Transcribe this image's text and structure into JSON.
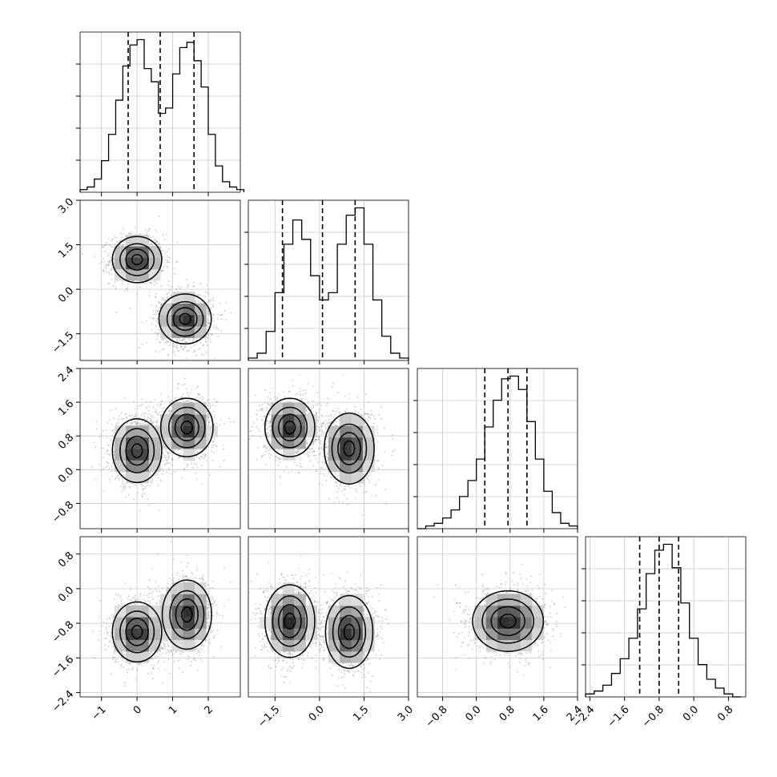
{
  "chart_data": {
    "type": "corner",
    "n_params": 4,
    "grid": true,
    "quantile_line_style": "dashed",
    "axes": [
      {
        "range": [
          -1.6,
          2.9
        ],
        "tick_values": [
          -1,
          0,
          1,
          2
        ],
        "tick_labels": [
          "−1",
          "0",
          "1",
          "2"
        ]
      },
      {
        "range": [
          -2.4,
          3.0
        ],
        "tick_values": [
          -1.5,
          0.0,
          1.5,
          3.0
        ],
        "tick_labels": [
          "−1.5",
          "0.0",
          "1.5",
          "3.0"
        ]
      },
      {
        "range": [
          -1.4,
          2.4
        ],
        "tick_values": [
          -0.8,
          0.0,
          0.8,
          1.6,
          2.4
        ],
        "tick_labels": [
          "−0.8",
          "0.0",
          "0.8",
          "1.6",
          "2.4"
        ]
      },
      {
        "range": [
          -2.5,
          1.2
        ],
        "tick_values": [
          -2.4,
          -1.6,
          -0.8,
          0.0,
          0.8
        ],
        "tick_labels": [
          "−2.4",
          "−1.6",
          "−0.8",
          "0.0",
          "0.8"
        ]
      }
    ],
    "diagonal_histograms": [
      {
        "param": 0,
        "quantiles": [
          -0.25,
          0.65,
          1.6
        ],
        "bin_edges": [
          -1.6,
          -1.4,
          -1.2,
          -1.0,
          -0.8,
          -0.6,
          -0.4,
          -0.2,
          0.0,
          0.2,
          0.4,
          0.6,
          0.8,
          1.0,
          1.2,
          1.4,
          1.6,
          1.8,
          2.0,
          2.2,
          2.4,
          2.6,
          2.8,
          3.0
        ],
        "counts": [
          1,
          2,
          5,
          12,
          22,
          35,
          48,
          56,
          58,
          47,
          42,
          30,
          32,
          45,
          55,
          57,
          50,
          40,
          22,
          10,
          4,
          2,
          1
        ]
      },
      {
        "param": 1,
        "quantiles": [
          -1.25,
          0.1,
          1.2
        ],
        "bin_edges": [
          -2.4,
          -2.1,
          -1.8,
          -1.5,
          -1.2,
          -0.9,
          -0.6,
          -0.3,
          0.0,
          0.3,
          0.6,
          0.9,
          1.2,
          1.5,
          1.8,
          2.1,
          2.4,
          2.7,
          3.0
        ],
        "counts": [
          1,
          3,
          12,
          28,
          48,
          58,
          50,
          35,
          25,
          28,
          48,
          60,
          63,
          48,
          25,
          10,
          3,
          1
        ]
      },
      {
        "param": 2,
        "quantiles": [
          0.2,
          0.75,
          1.2
        ],
        "bin_edges": [
          -1.4,
          -1.2,
          -1.0,
          -0.8,
          -0.6,
          -0.4,
          -0.2,
          0.0,
          0.2,
          0.4,
          0.6,
          0.8,
          1.0,
          1.2,
          1.4,
          1.6,
          1.8,
          2.0,
          2.2,
          2.4
        ],
        "counts": [
          0,
          1,
          2,
          4,
          7,
          12,
          18,
          26,
          38,
          48,
          56,
          57,
          52,
          40,
          26,
          14,
          6,
          2,
          1
        ]
      },
      {
        "param": 3,
        "quantiles": [
          -1.25,
          -0.8,
          -0.35
        ],
        "bin_edges": [
          -2.5,
          -2.3,
          -2.1,
          -1.9,
          -1.7,
          -1.5,
          -1.3,
          -1.1,
          -0.9,
          -0.7,
          -0.5,
          -0.3,
          -0.1,
          0.1,
          0.3,
          0.5,
          0.7,
          0.9,
          1.1
        ],
        "counts": [
          1,
          2,
          4,
          8,
          13,
          20,
          30,
          42,
          50,
          52,
          44,
          32,
          20,
          11,
          6,
          3,
          1,
          0
        ]
      }
    ],
    "pair_panels": [
      {
        "x_param": 0,
        "y_param": 1,
        "modes": [
          {
            "cx": 0.0,
            "cy": 1.0,
            "sx": 0.33,
            "sy": 0.37
          },
          {
            "cx": 1.35,
            "cy": -1.0,
            "sx": 0.35,
            "sy": 0.4
          }
        ]
      },
      {
        "x_param": 0,
        "y_param": 2,
        "modes": [
          {
            "cx": 0.0,
            "cy": 0.45,
            "sx": 0.33,
            "sy": 0.36
          },
          {
            "cx": 1.4,
            "cy": 1.0,
            "sx": 0.35,
            "sy": 0.33
          }
        ]
      },
      {
        "x_param": 1,
        "y_param": 2,
        "modes": [
          {
            "cx": -1.0,
            "cy": 1.0,
            "sx": 0.4,
            "sy": 0.33
          },
          {
            "cx": 1.0,
            "cy": 0.5,
            "sx": 0.4,
            "sy": 0.4
          }
        ]
      },
      {
        "x_param": 0,
        "y_param": 3,
        "modes": [
          {
            "cx": 0.0,
            "cy": -1.0,
            "sx": 0.33,
            "sy": 0.33
          },
          {
            "cx": 1.4,
            "cy": -0.6,
            "sx": 0.33,
            "sy": 0.38
          }
        ]
      },
      {
        "x_param": 1,
        "y_param": 3,
        "modes": [
          {
            "cx": -1.0,
            "cy": -0.75,
            "sx": 0.4,
            "sy": 0.4
          },
          {
            "cx": 1.0,
            "cy": -1.0,
            "sx": 0.38,
            "sy": 0.4
          }
        ]
      },
      {
        "x_param": 2,
        "y_param": 3,
        "modes": [
          {
            "cx": 0.75,
            "cy": -0.75,
            "sx": 0.42,
            "sy": 0.35
          }
        ]
      }
    ]
  }
}
